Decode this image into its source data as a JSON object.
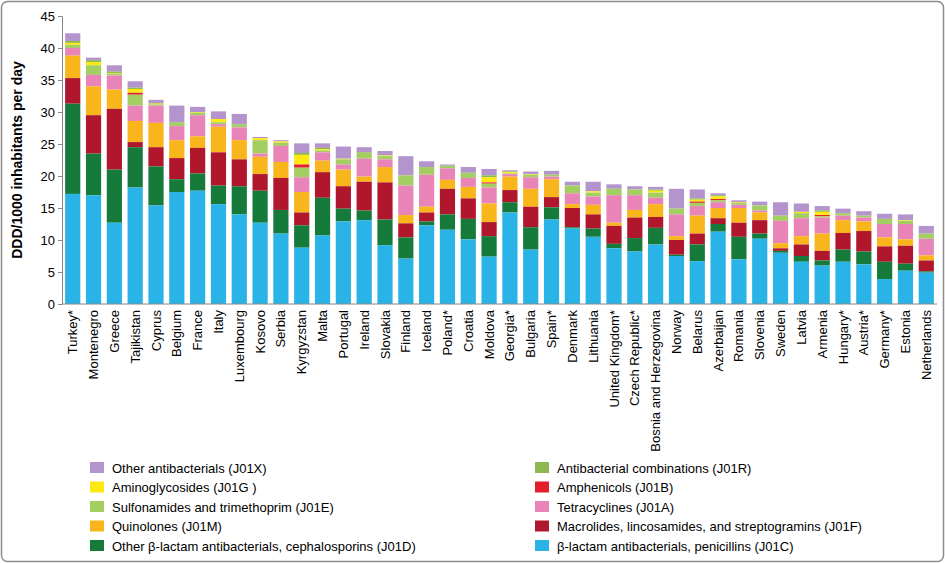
{
  "chart_data": {
    "type": "bar",
    "stacked": true,
    "grid": false,
    "legend": "bottom",
    "y_label": "DDD/1000 inhabitants per day",
    "ylim": [
      0,
      45
    ],
    "yticks": [
      0,
      5,
      10,
      15,
      20,
      25,
      30,
      35,
      40,
      45
    ],
    "categories": [
      "Turkey*",
      "Montenegro",
      "Greece",
      "Tajikistan",
      "Cyprus",
      "Belgium",
      "France",
      "Italy",
      "Luxembourg",
      "Kosovo",
      "Serbia",
      "Kyrgyzstan",
      "Malta",
      "Portugal",
      "Ireland",
      "Slovakia",
      "Finland",
      "Iceland",
      "Poland*",
      "Croatia",
      "Moldova",
      "Georgia*",
      "Bulgaria",
      "Spain*",
      "Denmark",
      "Lithuania",
      "United Kingdom*",
      "Czech Republic*",
      "Bosnia and Herzegovina",
      "Norway",
      "Belarus",
      "Azerbaijan",
      "Romania",
      "Slovenia",
      "Sweden",
      "Latvia",
      "Armenia",
      "Hungary*",
      "Austria*",
      "Germany*",
      "Estonia",
      "Netherlands"
    ],
    "series": [
      {
        "name": "Other antibacterials (J01X)",
        "color": "#b394cc",
        "values": [
          1.2,
          0.4,
          1,
          1,
          0.5,
          2.6,
          0.8,
          1.2,
          1.6,
          0.2,
          0.2,
          1.5,
          0.7,
          1.9,
          0.8,
          0.7,
          3,
          0.9,
          0.2,
          0.9,
          1,
          0.2,
          0.4,
          0.6,
          0.6,
          1.5,
          0.7,
          0.5,
          0.4,
          3.1,
          1.4,
          0.3,
          0.3,
          0.6,
          2.1,
          1.3,
          0.7,
          0.7,
          0.7,
          0.8,
          0.9,
          1.2
        ]
      },
      {
        "name": "Antibacterial combinations (J01R)",
        "color": "#8db84f",
        "values": [
          0.3,
          0.3,
          0.2,
          0.2,
          0.1,
          0.1,
          0,
          0,
          0.1,
          0,
          0,
          0.3,
          0.2,
          0,
          0.1,
          0,
          0,
          0,
          0,
          0,
          0.3,
          0.1,
          0,
          0,
          0,
          0,
          0,
          0,
          0.2,
          0,
          0.2,
          0.2,
          0,
          0,
          0,
          0,
          0.2,
          0,
          0,
          0,
          0,
          0
        ]
      },
      {
        "name": "Aminoglycosides (J01G )",
        "color": "#ffe812",
        "values": [
          0.3,
          0.5,
          0.1,
          0.6,
          0.1,
          0,
          0.1,
          0.5,
          0,
          0.3,
          0.2,
          1.5,
          0.2,
          0.1,
          0,
          0.1,
          0,
          0,
          0,
          0,
          0.8,
          0.2,
          0.1,
          0,
          0,
          0.2,
          0,
          0,
          0.3,
          0,
          0.3,
          0.4,
          0.1,
          0,
          0,
          0.2,
          0.5,
          0,
          0,
          0,
          0.1,
          0
        ]
      },
      {
        "name": "Amphenicols (J01B)",
        "color": "#e3202a",
        "values": [
          0,
          0,
          0,
          0.3,
          0,
          0,
          0,
          0,
          0,
          0,
          0,
          0.5,
          0,
          0,
          0,
          0,
          0,
          0,
          0,
          0,
          0.2,
          0,
          0,
          0,
          0,
          0,
          0,
          0,
          0,
          0,
          0.2,
          0.2,
          0,
          0,
          0,
          0,
          0.2,
          0,
          0,
          0,
          0,
          0
        ]
      },
      {
        "name": "Sulfonamides and trimethoprim (J01E)",
        "color": "#a3cf62",
        "values": [
          0.5,
          1.5,
          0.3,
          1.7,
          0.2,
          0.5,
          0.4,
          0.3,
          0.4,
          2.1,
          0.5,
          1.5,
          0.3,
          0.8,
          0.9,
          0.5,
          1.6,
          1.2,
          0.4,
          0.8,
          0.6,
          0.1,
          0.4,
          0.3,
          1.2,
          0.6,
          1,
          0.9,
          0.8,
          0.9,
          0.5,
          0.3,
          0.3,
          0.8,
          0.8,
          0.8,
          0.2,
          0.4,
          0.3,
          0.8,
          0.5,
          0.8
        ]
      },
      {
        "name": "Tetracyclines (J01A)",
        "color": "#e884b8",
        "values": [
          1.2,
          1.8,
          2.2,
          2.4,
          2.7,
          2.2,
          3.3,
          0.4,
          2,
          0.5,
          2.5,
          2.3,
          1.3,
          0.8,
          2.8,
          1.2,
          4.6,
          5,
          1.8,
          1.4,
          2.5,
          0.4,
          1.8,
          0.4,
          1.7,
          1.3,
          4.3,
          2.3,
          1,
          3.4,
          1.5,
          0.9,
          0.5,
          0.3,
          3.5,
          2.8,
          2.5,
          0.7,
          0.6,
          2.1,
          2.4,
          2.6
        ]
      },
      {
        "name": "Quinolones (J01M)",
        "color": "#f9b51c",
        "values": [
          3.5,
          4.5,
          3,
          3.3,
          3.8,
          2.8,
          1.8,
          4,
          3,
          2.7,
          2.5,
          3.2,
          1.8,
          2.6,
          0.8,
          2.4,
          1.3,
          0.9,
          1.4,
          1.8,
          2.9,
          2.1,
          2.8,
          2.8,
          0.6,
          1.5,
          0.5,
          1.2,
          2,
          0.6,
          2.8,
          1.6,
          2.3,
          1.2,
          0.8,
          1.3,
          2.7,
          2,
          1.5,
          1.4,
          1,
          0.8
        ]
      },
      {
        "name": "Macrolides, lincosamides, and streptogramins (J01F)",
        "color": "#b0172c",
        "values": [
          4,
          6,
          9.5,
          0.8,
          3,
          3.3,
          4,
          5.2,
          4.2,
          2.6,
          5,
          2,
          4,
          3.5,
          4.5,
          5.8,
          2.2,
          1.4,
          4,
          3.2,
          2.2,
          1.9,
          3.2,
          1.6,
          3,
          2.2,
          2.8,
          3.2,
          1.7,
          2.3,
          1.7,
          0.9,
          2.2,
          2.1,
          0.4,
          1.8,
          1.5,
          2.6,
          3.2,
          2.4,
          2.8,
          1.7
        ]
      },
      {
        "name": "Other β-lactam antibacterials, cephalosporins (J01D)",
        "color": "#167a3a",
        "values": [
          14.1,
          6.5,
          8.3,
          6.3,
          6.1,
          2,
          2.7,
          2.9,
          4.4,
          5,
          3.7,
          3.5,
          5.9,
          2,
          1.5,
          4,
          3.3,
          0.6,
          2.4,
          3.2,
          3.2,
          1.6,
          3.5,
          1.9,
          0.2,
          1.3,
          0.7,
          2.1,
          2.6,
          0.2,
          2.6,
          1.2,
          3.5,
          0.8,
          0.3,
          0.9,
          0.8,
          1.9,
          2,
          2.7,
          1.1,
          0.2
        ]
      },
      {
        "name": "β-lactam antibacterials, penicillins (J01C)",
        "color": "#2ab3e6",
        "values": [
          17.2,
          17,
          12.7,
          18.2,
          15.4,
          17.5,
          17.7,
          15.6,
          14,
          12.7,
          11,
          8.8,
          10.7,
          12.9,
          13.1,
          9.2,
          7.1,
          12.3,
          11.6,
          10.1,
          7.4,
          14.3,
          8.5,
          13.2,
          11.8,
          10.5,
          8.7,
          8.2,
          9.3,
          7.5,
          6.7,
          11.3,
          7,
          10.2,
          8,
          6.6,
          6,
          6.6,
          6.2,
          3.9,
          5.2,
          4.9
        ]
      }
    ]
  }
}
